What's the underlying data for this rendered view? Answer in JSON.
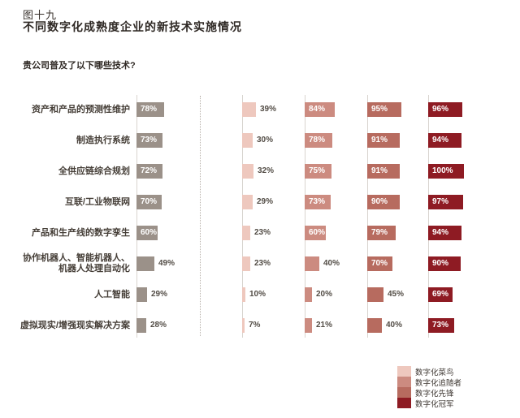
{
  "chart_data": {
    "type": "bar",
    "orientation": "horizontal",
    "figure_label": "图十九",
    "title": "不同数字化成熟度企业的新技术实施情况",
    "question": "贵公司普及了以下哪些技术?",
    "value_unit": "%",
    "value_range": [
      0,
      100
    ],
    "grid": "vertical-baselines-only",
    "categories": [
      "资产和产品的预测性维护",
      "制造执行系统",
      "全供应链综合规划",
      "互联/工业物联网",
      "产品和生产线的数字孪生",
      "协作机器人、智能机器人、\n机器人处理自动化",
      "人工智能",
      "虚拟现实/增强现实解决方案"
    ],
    "series": [
      {
        "name": "",
        "color": "#9b9189",
        "values": [
          78,
          73,
          72,
          70,
          60,
          49,
          29,
          28
        ]
      },
      {
        "name": "数字化菜鸟",
        "color": "#eec8be",
        "values": [
          39,
          30,
          32,
          29,
          23,
          23,
          10,
          7
        ]
      },
      {
        "name": "数字化追随者",
        "color": "#cc8b80",
        "values": [
          84,
          78,
          75,
          73,
          60,
          40,
          20,
          21
        ]
      },
      {
        "name": "数字化先锋",
        "color": "#b76b5f",
        "values": [
          95,
          91,
          91,
          90,
          79,
          70,
          45,
          40
        ]
      },
      {
        "name": "数字化冠军",
        "color": "#8e1b23",
        "values": [
          96,
          94,
          100,
          97,
          94,
          90,
          69,
          73
        ]
      }
    ],
    "legend": {
      "position": "bottom-right",
      "items": [
        "数字化菜鸟",
        "数字化追随者",
        "数字化先锋",
        "数字化冠军"
      ]
    }
  },
  "style": {
    "axis_line_color": "#d8d4cf",
    "divider_dotted_color": "#b8b1aa",
    "inside_label_color": "#ffffff",
    "outside_label_color": "#524c45"
  }
}
